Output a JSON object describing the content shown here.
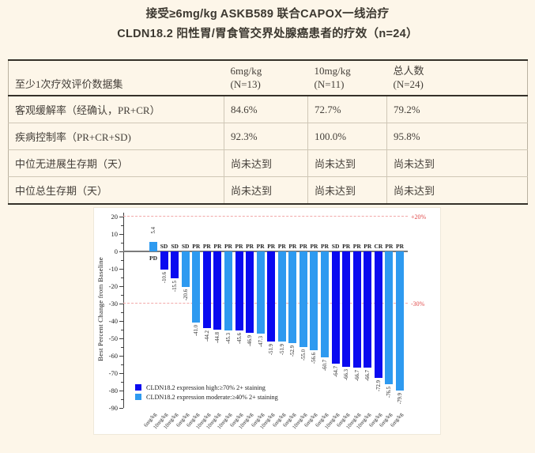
{
  "title": {
    "line1": "接受≥6mg/kg ASKB589 联合CAPOX一线治疗",
    "line2": "CLDN18.2 阳性胃/胃食管交界处腺癌患者的疗效（n=24）"
  },
  "table": {
    "header": {
      "col1": "至少1次疗效评价数据集",
      "cols": [
        {
          "line1": "6mg/kg",
          "line2": "(N=13)"
        },
        {
          "line1": "10mg/kg",
          "line2": "(N=11)"
        },
        {
          "line1": "总人数",
          "line2": "(N=24)"
        }
      ]
    },
    "rows": [
      {
        "label": "客观缓解率（经确认，PR+CR）",
        "values": [
          "84.6%",
          "72.7%",
          "79.2%"
        ]
      },
      {
        "label": "疾病控制率（PR+CR+SD)",
        "values": [
          "92.3%",
          "100.0%",
          "95.8%"
        ]
      },
      {
        "label": "中位无进展生存期（天）",
        "values": [
          "尚未达到",
          "尚未达到",
          "尚未达到"
        ]
      },
      {
        "label": "中位总生存期（天）",
        "values": [
          "尚未达到",
          "尚未达到",
          "尚未达到"
        ]
      }
    ]
  },
  "chart_data": {
    "type": "bar",
    "subtype": "waterfall",
    "title": "",
    "ylabel": "Best Percent Change from Baseline",
    "xlabel": "",
    "ylim": [
      -90,
      20
    ],
    "yticks": [
      20,
      10,
      0,
      -10,
      -20,
      -30,
      -40,
      -50,
      -60,
      -70,
      -80,
      -90
    ],
    "grid": false,
    "legend_position": "lower-left",
    "reference_lines": [
      {
        "value": 20,
        "label": "+20%",
        "color": "#e04848",
        "style": "dashed"
      },
      {
        "value": -30,
        "label": "-30%",
        "color": "#e04848",
        "style": "dashed"
      }
    ],
    "legend": [
      {
        "key": "high",
        "label": "CLDN18.2 expression high:≥70% 2+ staining",
        "color": "#0a0af0"
      },
      {
        "key": "moderate",
        "label": "CLDN18.2 expression moderate:≥40% 2+ staining",
        "color": "#2e9af0"
      }
    ],
    "bars": [
      {
        "value": 5.4,
        "response": "PD",
        "group": "moderate",
        "dose": "6mg/kg"
      },
      {
        "value": -10.6,
        "response": "SD",
        "group": "high",
        "dose": "10mg/kg"
      },
      {
        "value": -15.5,
        "response": "SD",
        "group": "high",
        "dose": "10mg/kg"
      },
      {
        "value": -20.6,
        "response": "SD",
        "group": "moderate",
        "dose": "6mg/kg"
      },
      {
        "value": -41.0,
        "response": "PR",
        "group": "moderate",
        "dose": "6mg/kg"
      },
      {
        "value": -44.2,
        "response": "PR",
        "group": "high",
        "dose": "10mg/kg"
      },
      {
        "value": -44.8,
        "response": "PR",
        "group": "high",
        "dose": "10mg/kg"
      },
      {
        "value": -45.3,
        "response": "PR",
        "group": "moderate",
        "dose": "10mg/kg"
      },
      {
        "value": -45.6,
        "response": "PR",
        "group": "high",
        "dose": "6mg/kg"
      },
      {
        "value": -46.9,
        "response": "PR",
        "group": "high",
        "dose": "10mg/kg"
      },
      {
        "value": -47.3,
        "response": "PR",
        "group": "moderate",
        "dose": "6mg/kg"
      },
      {
        "value": -51.9,
        "response": "PR",
        "group": "high",
        "dose": "10mg/kg"
      },
      {
        "value": -51.9,
        "response": "PR",
        "group": "moderate",
        "dose": "6mg/kg"
      },
      {
        "value": -52.9,
        "response": "PR",
        "group": "moderate",
        "dose": "6mg/kg"
      },
      {
        "value": -55.0,
        "response": "PR",
        "group": "moderate",
        "dose": "10mg/kg"
      },
      {
        "value": -56.6,
        "response": "PR",
        "group": "moderate",
        "dose": "6mg/kg"
      },
      {
        "value": -60.7,
        "response": "PR",
        "group": "moderate",
        "dose": "6mg/kg"
      },
      {
        "value": -64.7,
        "response": "SD",
        "group": "high",
        "dose": "10mg/kg"
      },
      {
        "value": -66.3,
        "response": "PR",
        "group": "high",
        "dose": "6mg/kg"
      },
      {
        "value": -66.7,
        "response": "PR",
        "group": "high",
        "dose": "10mg/kg"
      },
      {
        "value": -66.7,
        "response": "PR",
        "group": "high",
        "dose": "10mg/kg"
      },
      {
        "value": -72.9,
        "response": "CR",
        "group": "high",
        "dose": "6mg/kg"
      },
      {
        "value": -76.5,
        "response": "PR",
        "group": "moderate",
        "dose": "6mg/kg"
      },
      {
        "value": -79.9,
        "response": "PR",
        "group": "moderate",
        "dose": "6mg/kg"
      }
    ]
  },
  "colors": {
    "page_background": "#fdf6e9",
    "bar_high": "#0a0af0",
    "bar_moderate": "#2e9af0",
    "reference_line": "#f2a9a9",
    "reference_label": "#e04848",
    "zero_line": "#7b7b7b"
  }
}
